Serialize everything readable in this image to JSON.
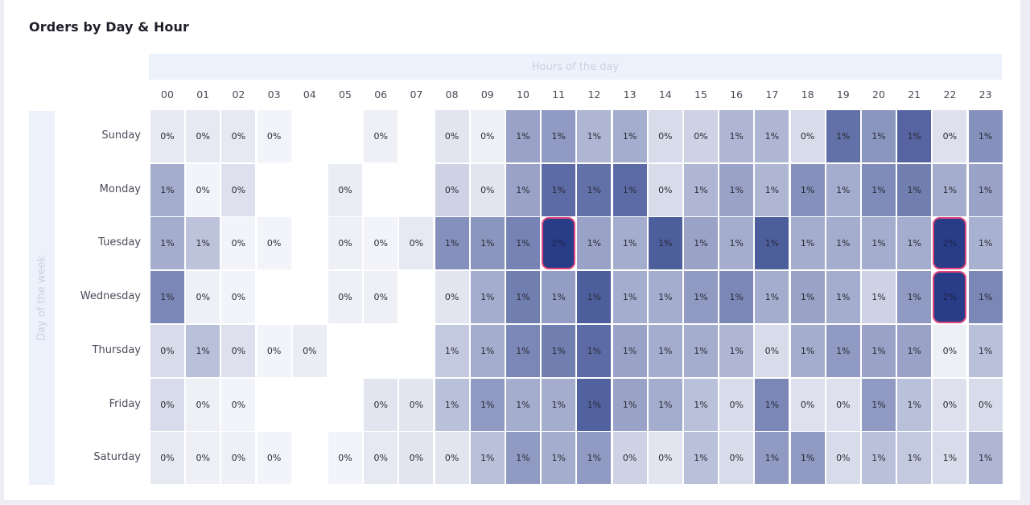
{
  "title": "Orders by Day & Hour",
  "chart_data": {
    "type": "heatmap",
    "title": "Orders by Day & Hour",
    "xlabel": "Hours of the day",
    "ylabel": "Day of the week",
    "x": [
      "00",
      "01",
      "02",
      "03",
      "04",
      "05",
      "06",
      "07",
      "08",
      "09",
      "10",
      "11",
      "12",
      "13",
      "14",
      "15",
      "16",
      "17",
      "18",
      "19",
      "20",
      "21",
      "22",
      "23"
    ],
    "y": [
      "Sunday",
      "Monday",
      "Tuesday",
      "Wednesday",
      "Thursday",
      "Friday",
      "Saturday"
    ],
    "labels": [
      [
        "0%",
        "0%",
        "0%",
        "0%",
        "",
        "",
        "0%",
        "",
        "0%",
        "0%",
        "1%",
        "1%",
        "1%",
        "1%",
        "0%",
        "0%",
        "1%",
        "1%",
        "0%",
        "1%",
        "1%",
        "1%",
        "0%",
        "1%"
      ],
      [
        "1%",
        "0%",
        "0%",
        "",
        "",
        "0%",
        "",
        "",
        "0%",
        "0%",
        "1%",
        "1%",
        "1%",
        "1%",
        "0%",
        "1%",
        "1%",
        "1%",
        "1%",
        "1%",
        "1%",
        "1%",
        "1%",
        "1%"
      ],
      [
        "1%",
        "1%",
        "0%",
        "0%",
        "",
        "0%",
        "0%",
        "0%",
        "1%",
        "1%",
        "1%",
        "2%",
        "1%",
        "1%",
        "1%",
        "1%",
        "1%",
        "1%",
        "1%",
        "1%",
        "1%",
        "1%",
        "2%",
        "1%"
      ],
      [
        "1%",
        "0%",
        "0%",
        "",
        "",
        "0%",
        "0%",
        "",
        "0%",
        "1%",
        "1%",
        "1%",
        "1%",
        "1%",
        "1%",
        "1%",
        "1%",
        "1%",
        "1%",
        "1%",
        "1%",
        "1%",
        "2%",
        "1%"
      ],
      [
        "0%",
        "1%",
        "0%",
        "0%",
        "0%",
        "",
        "",
        "",
        "1%",
        "1%",
        "1%",
        "1%",
        "1%",
        "1%",
        "1%",
        "1%",
        "1%",
        "0%",
        "1%",
        "1%",
        "1%",
        "1%",
        "0%",
        "1%"
      ],
      [
        "0%",
        "0%",
        "0%",
        "",
        "",
        "",
        "0%",
        "0%",
        "1%",
        "1%",
        "1%",
        "1%",
        "1%",
        "1%",
        "1%",
        "1%",
        "0%",
        "1%",
        "0%",
        "0%",
        "1%",
        "1%",
        "0%",
        "0%"
      ],
      [
        "0%",
        "0%",
        "0%",
        "0%",
        "",
        "0%",
        "0%",
        "0%",
        "0%",
        "1%",
        "1%",
        "1%",
        "1%",
        "0%",
        "0%",
        "1%",
        "0%",
        "1%",
        "1%",
        "0%",
        "1%",
        "1%",
        "1%",
        "1%"
      ]
    ],
    "intensity": [
      [
        0.08,
        0.08,
        0.08,
        0.02,
        null,
        null,
        0.04,
        null,
        0.1,
        0.04,
        0.45,
        0.5,
        0.35,
        0.4,
        0.15,
        0.2,
        0.35,
        0.35,
        0.15,
        0.72,
        0.52,
        0.78,
        0.12,
        0.55
      ],
      [
        0.4,
        0.02,
        0.12,
        null,
        null,
        0.06,
        null,
        null,
        0.2,
        0.1,
        0.45,
        0.75,
        0.72,
        0.75,
        0.15,
        0.35,
        0.45,
        0.35,
        0.55,
        0.4,
        0.58,
        0.65,
        0.4,
        0.45
      ],
      [
        0.4,
        0.28,
        0.02,
        0.02,
        null,
        0.04,
        0.02,
        0.08,
        0.55,
        0.52,
        0.62,
        1.0,
        0.45,
        0.4,
        0.82,
        0.45,
        0.4,
        0.82,
        0.4,
        0.4,
        0.4,
        0.4,
        1.0,
        0.38
      ],
      [
        0.6,
        0.04,
        0.02,
        null,
        null,
        0.04,
        0.04,
        null,
        0.1,
        0.4,
        0.65,
        0.48,
        0.82,
        0.4,
        0.4,
        0.5,
        0.6,
        0.4,
        0.45,
        0.4,
        0.2,
        0.5,
        1.0,
        0.6
      ],
      [
        0.15,
        0.3,
        0.12,
        0.02,
        0.06,
        null,
        null,
        null,
        0.25,
        0.4,
        0.6,
        0.65,
        0.75,
        0.45,
        0.4,
        0.4,
        0.35,
        0.15,
        0.4,
        0.5,
        0.45,
        0.45,
        0.04,
        0.3
      ],
      [
        0.15,
        0.04,
        0.02,
        null,
        null,
        null,
        0.1,
        0.1,
        0.3,
        0.5,
        0.4,
        0.4,
        0.8,
        0.45,
        0.4,
        0.3,
        0.15,
        0.6,
        0.12,
        0.12,
        0.5,
        0.3,
        0.12,
        0.15
      ],
      [
        0.08,
        0.04,
        0.04,
        0.02,
        null,
        0.02,
        0.08,
        0.1,
        0.1,
        0.3,
        0.5,
        0.4,
        0.5,
        0.2,
        0.1,
        0.3,
        0.15,
        0.5,
        0.5,
        0.15,
        0.3,
        0.25,
        0.15,
        0.35
      ]
    ],
    "highlighted": [
      [
        2,
        11
      ],
      [
        2,
        22
      ],
      [
        3,
        22
      ]
    ],
    "colors": {
      "low": "#f7f8fb",
      "high": "#283c88",
      "highlight": "#e0457b"
    }
  }
}
